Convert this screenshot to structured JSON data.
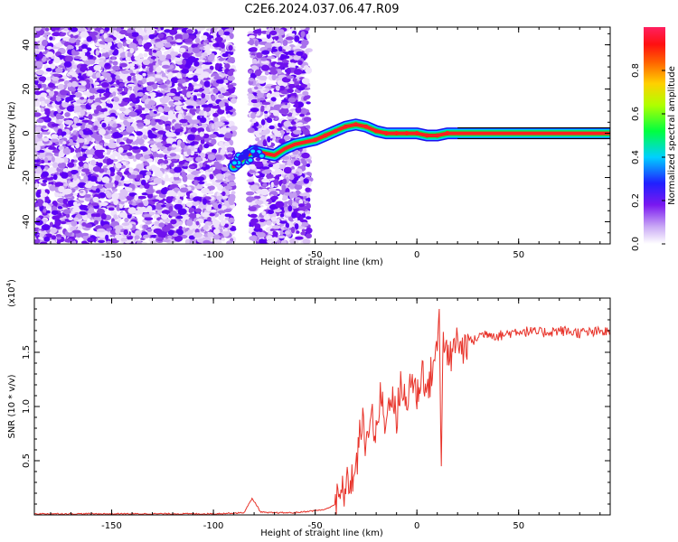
{
  "title": "C2E6.2024.037.06.47.R09",
  "chart_data": [
    {
      "type": "heatmap",
      "xlabel": "Height of straight line (km)",
      "ylabel": "Frequency (Hz)",
      "xlim": [
        -188,
        95
      ],
      "ylim": [
        -50,
        48
      ],
      "xticks": [
        -150,
        -100,
        -50,
        0,
        50
      ],
      "yticks": [
        -40,
        -20,
        0,
        20,
        40
      ],
      "noise_bands": [
        [
          -188,
          -90
        ],
        [
          -82,
          -53
        ]
      ],
      "signal_trace": {
        "x": [
          -90,
          -85,
          -80,
          -75,
          -70,
          -65,
          -60,
          -55,
          -50,
          -45,
          -40,
          -35,
          -30,
          -25,
          -20,
          -15,
          -10,
          -5,
          0,
          5,
          10,
          15,
          20,
          50,
          95
        ],
        "y": [
          -15,
          -11,
          -8,
          -9,
          -10,
          -7,
          -5,
          -4,
          -3,
          -1,
          1,
          3,
          4,
          3,
          1,
          0,
          0,
          0,
          0,
          -1,
          -1,
          0,
          0,
          0,
          0
        ]
      },
      "colorbar": {
        "label": "Normalized spectral amplitude",
        "range": [
          0.0,
          1.0
        ],
        "ticks": [
          "0.0",
          "0.2",
          "0.4",
          "0.6",
          "0.8"
        ]
      }
    },
    {
      "type": "line",
      "xlabel": "Height of straight line (km)",
      "ylabel": "SNR (10 * v/v)",
      "multiplier": "(x10",
      "multiplier_exp": "4",
      "multiplier_close": ")",
      "xlim": [
        -188,
        95
      ],
      "ylim": [
        0.0,
        2.0
      ],
      "xticks": [
        -150,
        -100,
        -50,
        0,
        50
      ],
      "yticks": [
        "0.5",
        "1.0",
        "1.5"
      ],
      "color": "#e8332a",
      "series": [
        {
          "x": [
            -188,
            -150,
            -100,
            -85,
            -81,
            -79,
            -77,
            -74,
            -60,
            -45,
            -40,
            -35,
            -30,
            -27,
            -25,
            -23,
            -20,
            -18,
            -15,
            -13,
            -10,
            -8,
            -5,
            -3,
            0,
            3,
            5,
            8,
            10,
            11,
            12,
            13,
            15,
            18,
            20,
            22,
            25,
            28,
            30,
            35,
            40,
            50,
            60,
            70,
            80,
            95
          ],
          "y": [
            0.01,
            0.01,
            0.01,
            0.02,
            0.15,
            0.1,
            0.03,
            0.02,
            0.02,
            0.05,
            0.1,
            0.25,
            0.4,
            0.9,
            0.55,
            1.0,
            0.7,
            1.1,
            0.8,
            1.2,
            0.85,
            1.25,
            0.95,
            1.3,
            1.1,
            1.35,
            1.1,
            1.4,
            1.5,
            1.95,
            0.5,
            1.7,
            1.4,
            1.5,
            1.65,
            1.5,
            1.62,
            1.6,
            1.65,
            1.68,
            1.65,
            1.7,
            1.68,
            1.7,
            1.68,
            1.69
          ]
        }
      ]
    }
  ]
}
